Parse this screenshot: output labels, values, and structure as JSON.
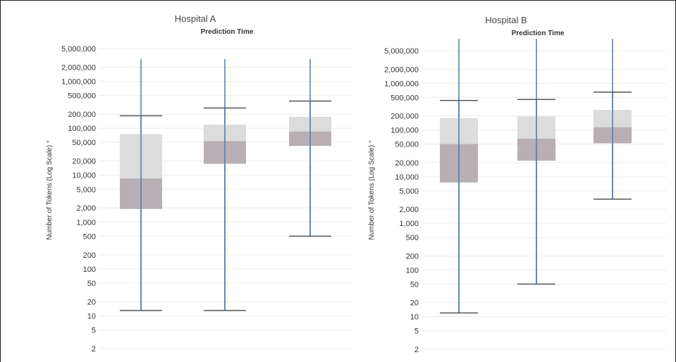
{
  "chart_data": [
    {
      "type": "boxplot",
      "title": "Hospital A",
      "subtitle": "Prediction Time",
      "ylabel": "Number of Tokens (Log Scale)",
      "yscale": "log",
      "yticks": [
        2,
        5,
        10,
        20,
        50,
        100,
        200,
        500,
        1000,
        2000,
        5000,
        10000,
        20000,
        50000,
        100000,
        200000,
        500000,
        1000000,
        2000000,
        5000000
      ],
      "ytick_labels": [
        "2",
        "5",
        "10",
        "20",
        "50",
        "100",
        "200",
        "500",
        "1,000",
        "2,000",
        "5,000",
        "10,000",
        "20,000",
        "50,000",
        "100,000",
        "200,000",
        "500,000",
        "1,000,000",
        "2,000,000",
        "5,000,000"
      ],
      "grid": true,
      "boxes": [
        {
          "whisker_low": 13,
          "q1": 1900,
          "median": 8500,
          "q3": 75000,
          "whisker_high": 185000,
          "max": 3000000
        },
        {
          "whisker_low": 13,
          "q1": 17500,
          "median": 53000,
          "q3": 120000,
          "whisker_high": 270000,
          "max": 3000000
        },
        {
          "whisker_low": 500,
          "q1": 42000,
          "median": 85000,
          "q3": 175000,
          "whisker_high": 380000,
          "max": 3000000
        }
      ]
    },
    {
      "type": "boxplot",
      "title": "Hospital B",
      "subtitle": "Prediction Time",
      "ylabel": "Number of Tokens (Log Scale)",
      "yscale": "log",
      "yticks": [
        2,
        5,
        10,
        20,
        50,
        100,
        200,
        500,
        1000,
        2000,
        5000,
        10000,
        20000,
        50000,
        100000,
        200000,
        500000,
        1000000,
        2000000,
        5000000
      ],
      "ytick_labels": [
        "2",
        "5",
        "10",
        "20",
        "50",
        "100",
        "200",
        "500",
        "1,000",
        "2,000",
        "5,000",
        "10,000",
        "20,000",
        "50,000",
        "100,000",
        "200,000",
        "500,000",
        "1,000,000",
        "2,000,000",
        "5,000,000"
      ],
      "grid": true,
      "boxes": [
        {
          "whisker_low": 12,
          "q1": 7500,
          "median": 50000,
          "q3": 180000,
          "whisker_high": 430000,
          "max": 9000000
        },
        {
          "whisker_low": 50,
          "q1": 22000,
          "median": 65000,
          "q3": 195000,
          "whisker_high": 450000,
          "max": 9000000
        },
        {
          "whisker_low": 3300,
          "q1": 52000,
          "median": 115000,
          "q3": 270000,
          "whisker_high": 650000,
          "max": 9000000
        }
      ]
    }
  ],
  "style": {
    "upper_box_color": "#dcdcdc",
    "lower_box_color": "#b7afb3",
    "max_line_color": "#4a7ab0",
    "whisker_color": "#555555",
    "grid_color": "#ececec",
    "label_icon": "asterisk-icon"
  }
}
